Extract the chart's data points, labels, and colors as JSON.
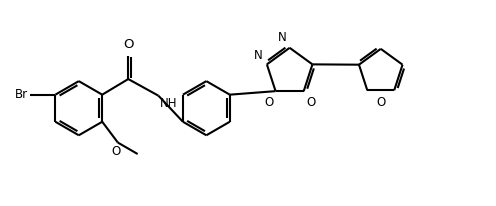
{
  "bg_color": "#ffffff",
  "line_color": "#000000",
  "line_width": 1.5,
  "font_size": 8.5,
  "figsize": [
    4.96,
    2.06
  ],
  "dpi": 100,
  "xlim": [
    0,
    9.5
  ],
  "ylim": [
    0,
    3.9
  ]
}
